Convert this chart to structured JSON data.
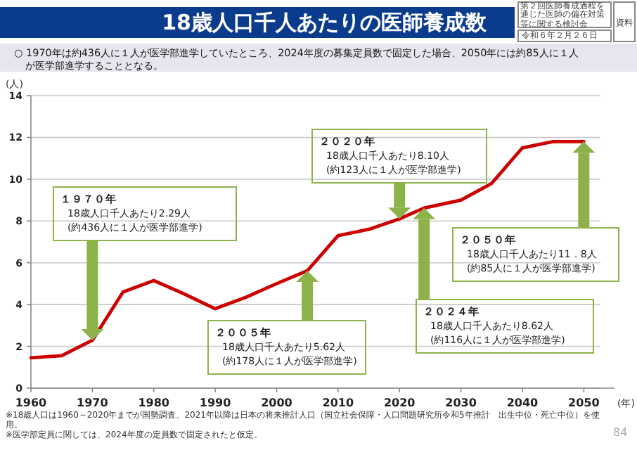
{
  "chart_data": {
    "type": "line",
    "title": "18歳人口千人あたりの医師養成数",
    "subtitle": "○ 1970年は約436人に１人が医学部進学していたところ、2024年度の募集定員数で固定した場合、2050年には約85人に１人が医学部進学することとなる。",
    "ylabel": "(人)",
    "xlabel": "(年)",
    "x": [
      1960,
      1965,
      1970,
      1975,
      1980,
      1985,
      1990,
      1995,
      2000,
      2005,
      2010,
      2015,
      2020,
      2024,
      2030,
      2035,
      2040,
      2045,
      2050
    ],
    "series": [
      {
        "color": "#cc0000",
        "values": [
          1.45,
          1.55,
          2.29,
          4.6,
          5.15,
          4.5,
          3.8,
          4.35,
          5.0,
          5.62,
          7.3,
          7.6,
          8.1,
          8.62,
          9.0,
          9.8,
          11.5,
          11.8,
          11.8
        ]
      }
    ],
    "xlim": [
      1960,
      2055
    ],
    "xticks": [
      1960,
      1970,
      1980,
      1990,
      2000,
      2010,
      2020,
      2030,
      2040,
      2050
    ],
    "ylim": [
      0,
      14
    ],
    "yticks": [
      0,
      2,
      4,
      6,
      8,
      10,
      12,
      14
    ],
    "grid": "y",
    "marker": "none",
    "line_style": "solid",
    "annotations": [
      {
        "text": "１９７０年\n18歳人口千人あたり2.29人\n(約436人に１人が医学部進学)",
        "x": 1970,
        "y": 2.29
      },
      {
        "text": "２００５年\n18歳人口千人あたり5.62人\n(約178人に１人が医学部進学)",
        "x": 2005,
        "y": 5.62
      },
      {
        "text": "２０２０年\n18歳人口千人あたり8.10人\n(約123人に１人が医学部進学)",
        "x": 2020,
        "y": 8.1
      },
      {
        "text": "２０２４年\n18歳人口千人あたり8.62人\n(約116人に１人が医学部進学)",
        "x": 2024,
        "y": 8.62
      },
      {
        "text": "２０５０年\n18歳人口千人あたり11．8人\n(約85人に１人が医学部進学)",
        "x": 2050,
        "y": 11.8
      },
      "第２回医師養成過程を通じた医師の偏在対策等に関する検討会",
      "令和６年２月２６日",
      "資料１",
      "※18歳人口は1960～2020年までが国勢調査、2021年以降は日本の将来推計人口（国立社会保障・人口問題研究所令和5年推計　出生中位・死亡中位）を使用。\n※医学部定員に関しては、2024年度の定員数で固定されたと仮定。",
      "84"
    ]
  }
}
